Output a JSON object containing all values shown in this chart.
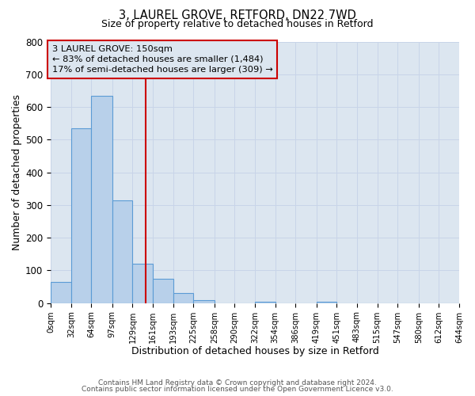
{
  "title": "3, LAUREL GROVE, RETFORD, DN22 7WD",
  "subtitle": "Size of property relative to detached houses in Retford",
  "xlabel": "Distribution of detached houses by size in Retford",
  "ylabel": "Number of detached properties",
  "bar_left_edges": [
    0,
    32,
    64,
    97,
    129,
    161,
    193,
    225,
    258,
    290,
    322,
    354,
    386,
    419,
    451,
    483,
    515,
    547,
    580,
    612
  ],
  "bar_heights": [
    65,
    535,
    635,
    315,
    120,
    75,
    30,
    10,
    0,
    0,
    5,
    0,
    0,
    5,
    0,
    0,
    0,
    0,
    0,
    0
  ],
  "bar_color": "#b8d0ea",
  "bar_edgecolor": "#5b9bd5",
  "vline_x": 150,
  "vline_color": "#cc0000",
  "annotation_line1": "3 LAUREL GROVE: 150sqm",
  "annotation_line2": "← 83% of detached houses are smaller (1,484)",
  "annotation_line3": "17% of semi-detached houses are larger (309) →",
  "annotation_box_color": "#cc0000",
  "xlim": [
    0,
    644
  ],
  "ylim": [
    0,
    800
  ],
  "xtick_labels": [
    "0sqm",
    "32sqm",
    "64sqm",
    "97sqm",
    "129sqm",
    "161sqm",
    "193sqm",
    "225sqm",
    "258sqm",
    "290sqm",
    "322sqm",
    "354sqm",
    "386sqm",
    "419sqm",
    "451sqm",
    "483sqm",
    "515sqm",
    "547sqm",
    "580sqm",
    "612sqm",
    "644sqm"
  ],
  "xtick_positions": [
    0,
    32,
    64,
    97,
    129,
    161,
    193,
    225,
    258,
    290,
    322,
    354,
    386,
    419,
    451,
    483,
    515,
    547,
    580,
    612,
    644
  ],
  "ytick_positions": [
    0,
    100,
    200,
    300,
    400,
    500,
    600,
    700,
    800
  ],
  "grid_color": "#c8d4e8",
  "plot_bg_color": "#dce6f0",
  "fig_bg_color": "#ffffff",
  "footer1": "Contains HM Land Registry data © Crown copyright and database right 2024.",
  "footer2": "Contains public sector information licensed under the Open Government Licence v3.0."
}
